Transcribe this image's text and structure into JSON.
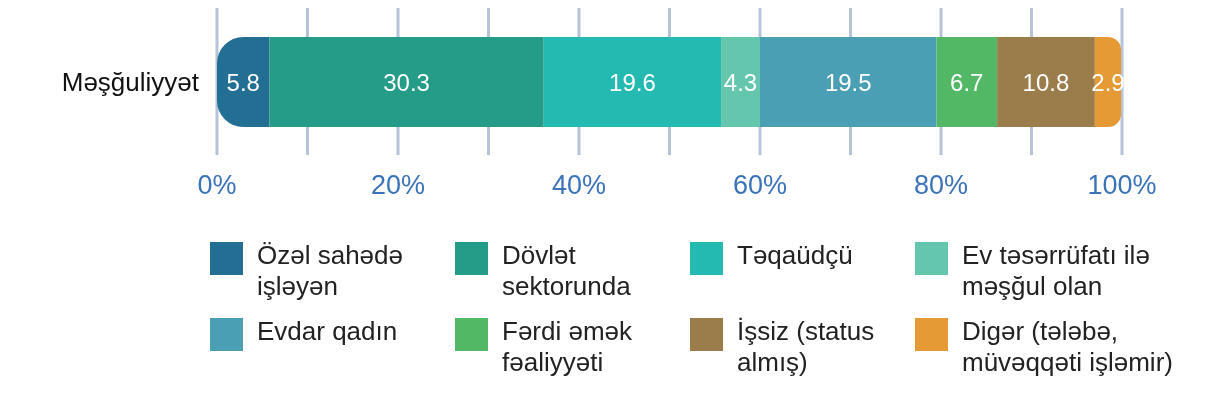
{
  "chart_data": {
    "type": "bar",
    "orientation": "horizontal",
    "stacked": true,
    "categories": [
      "Məşğuliyyət"
    ],
    "series": [
      {
        "name": "Özəl sahədə işləyən",
        "color": "#226f93",
        "values": [
          5.8
        ]
      },
      {
        "name": "Dövlət sektorunda",
        "color": "#259c87",
        "values": [
          30.3
        ]
      },
      {
        "name": "Təqaüdçü",
        "color": "#24bab1",
        "values": [
          19.6
        ]
      },
      {
        "name": "Ev təsərrüfatı ilə məşğul olan",
        "color": "#65c6ae",
        "values": [
          4.3
        ]
      },
      {
        "name": "Evdar qadın",
        "color": "#4b9fb5",
        "values": [
          19.5
        ]
      },
      {
        "name": "Fərdi əmək fəaliyyəti",
        "color": "#52b866",
        "values": [
          6.7
        ]
      },
      {
        "name": "İşsiz (status almış)",
        "color": "#9b7c4b",
        "values": [
          10.8
        ]
      },
      {
        "name": "Digər (tələbə, müvəqqəti işləmir)",
        "color": "#e59a35",
        "values": [
          2.9
        ]
      }
    ],
    "xlim": [
      0,
      100
    ],
    "xticks": [
      {
        "value": 0,
        "label": "0%"
      },
      {
        "value": 10,
        "label": null
      },
      {
        "value": 20,
        "label": "20%"
      },
      {
        "value": 30,
        "label": null
      },
      {
        "value": 40,
        "label": "40%"
      },
      {
        "value": 50,
        "label": null
      },
      {
        "value": 60,
        "label": "60%"
      },
      {
        "value": 70,
        "label": null
      },
      {
        "value": 80,
        "label": "80%"
      },
      {
        "value": 90,
        "label": null
      },
      {
        "value": 100,
        "label": "100%"
      }
    ],
    "grid": "x",
    "data_labels": true,
    "legend": "bottom"
  }
}
